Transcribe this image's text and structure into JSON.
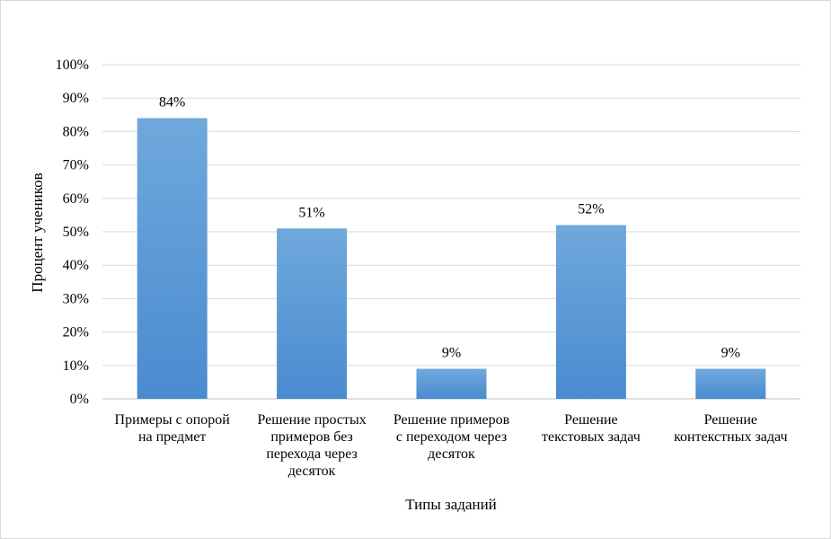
{
  "chart_data": {
    "type": "bar",
    "categories": [
      "Примеры с опорой\nна предмет",
      "Решение простых\nпримеров без\nперехода через\nдесяток",
      "Решение примеров\nс переходом через\nдесяток",
      "Решение\nтекстовых задач",
      "Решение\nконтекстных задач"
    ],
    "values": [
      84,
      51,
      9,
      52,
      9
    ],
    "data_labels": [
      "84%",
      "51%",
      "9%",
      "52%",
      "9%"
    ],
    "title": "",
    "xlabel": "Типы заданий",
    "ylabel": "Процент учеников",
    "ylim": [
      0,
      100
    ],
    "yticks": [
      "0%",
      "10%",
      "20%",
      "30%",
      "40%",
      "50%",
      "60%",
      "70%",
      "80%",
      "90%",
      "100%"
    ],
    "grid": true,
    "legend": "none",
    "bar_color": "#5b9bd5"
  }
}
